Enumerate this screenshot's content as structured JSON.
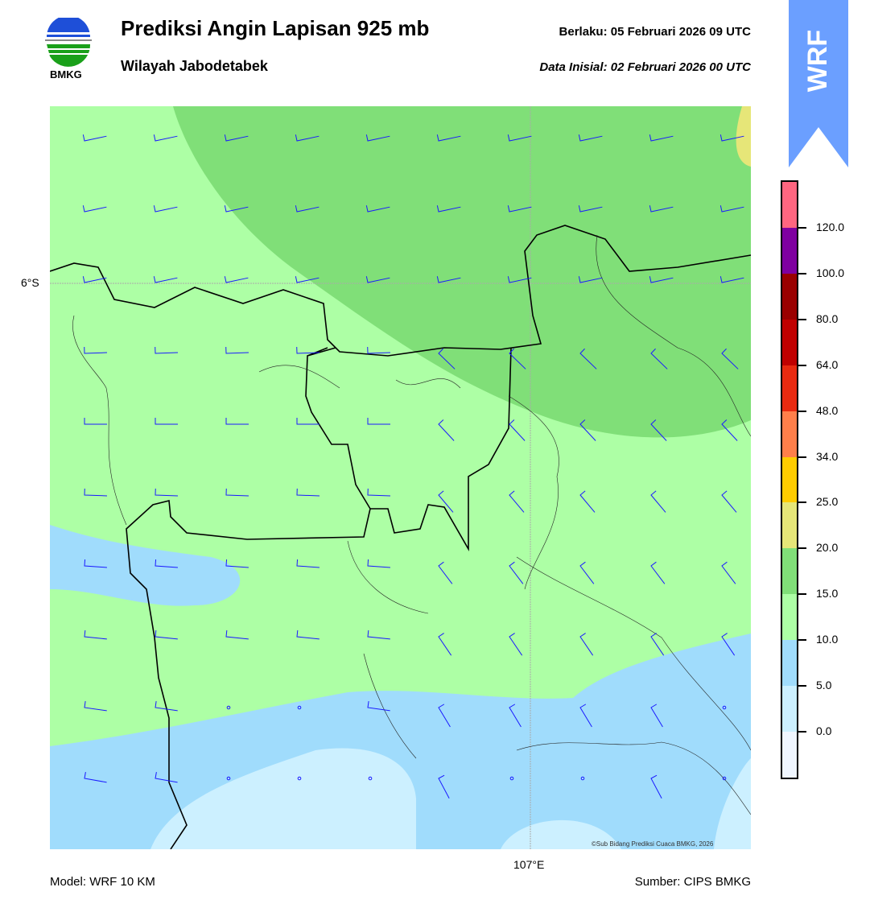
{
  "header": {
    "title": "Prediksi Angin Lapisan 925 mb",
    "subtitle": "Wilayah Jabodetabek",
    "valid": "Berlaku:  05 Februari 2026 09 UTC",
    "initial": "Data Inisial:  02 Februari 2026 00 UTC",
    "logo_text": "BMKG",
    "badge": "WRF"
  },
  "map": {
    "lat_label": "6°S",
    "lon_label": "107°E",
    "credit": "©Sub Bidang Prediksi Cuaca BMKG, 2026"
  },
  "footer": {
    "model": "Model: WRF 10 KM",
    "source": "Sumber: CIPS BMKG"
  },
  "colorbar": {
    "labels": [
      "120.0",
      "100.0",
      "80.0",
      "64.0",
      "48.0",
      "34.0",
      "25.0",
      "20.0",
      "15.0",
      "10.0",
      "5.0",
      "0.0"
    ],
    "colors": [
      "#ff6680",
      "#7f00a0",
      "#9a0000",
      "#c00000",
      "#e82a10",
      "#ff7f4a",
      "#ffcc00",
      "#e6e678",
      "#80df78",
      "#adffa5",
      "#a0dcfc",
      "#ccf0ff",
      "#f0f6ff"
    ]
  }
}
